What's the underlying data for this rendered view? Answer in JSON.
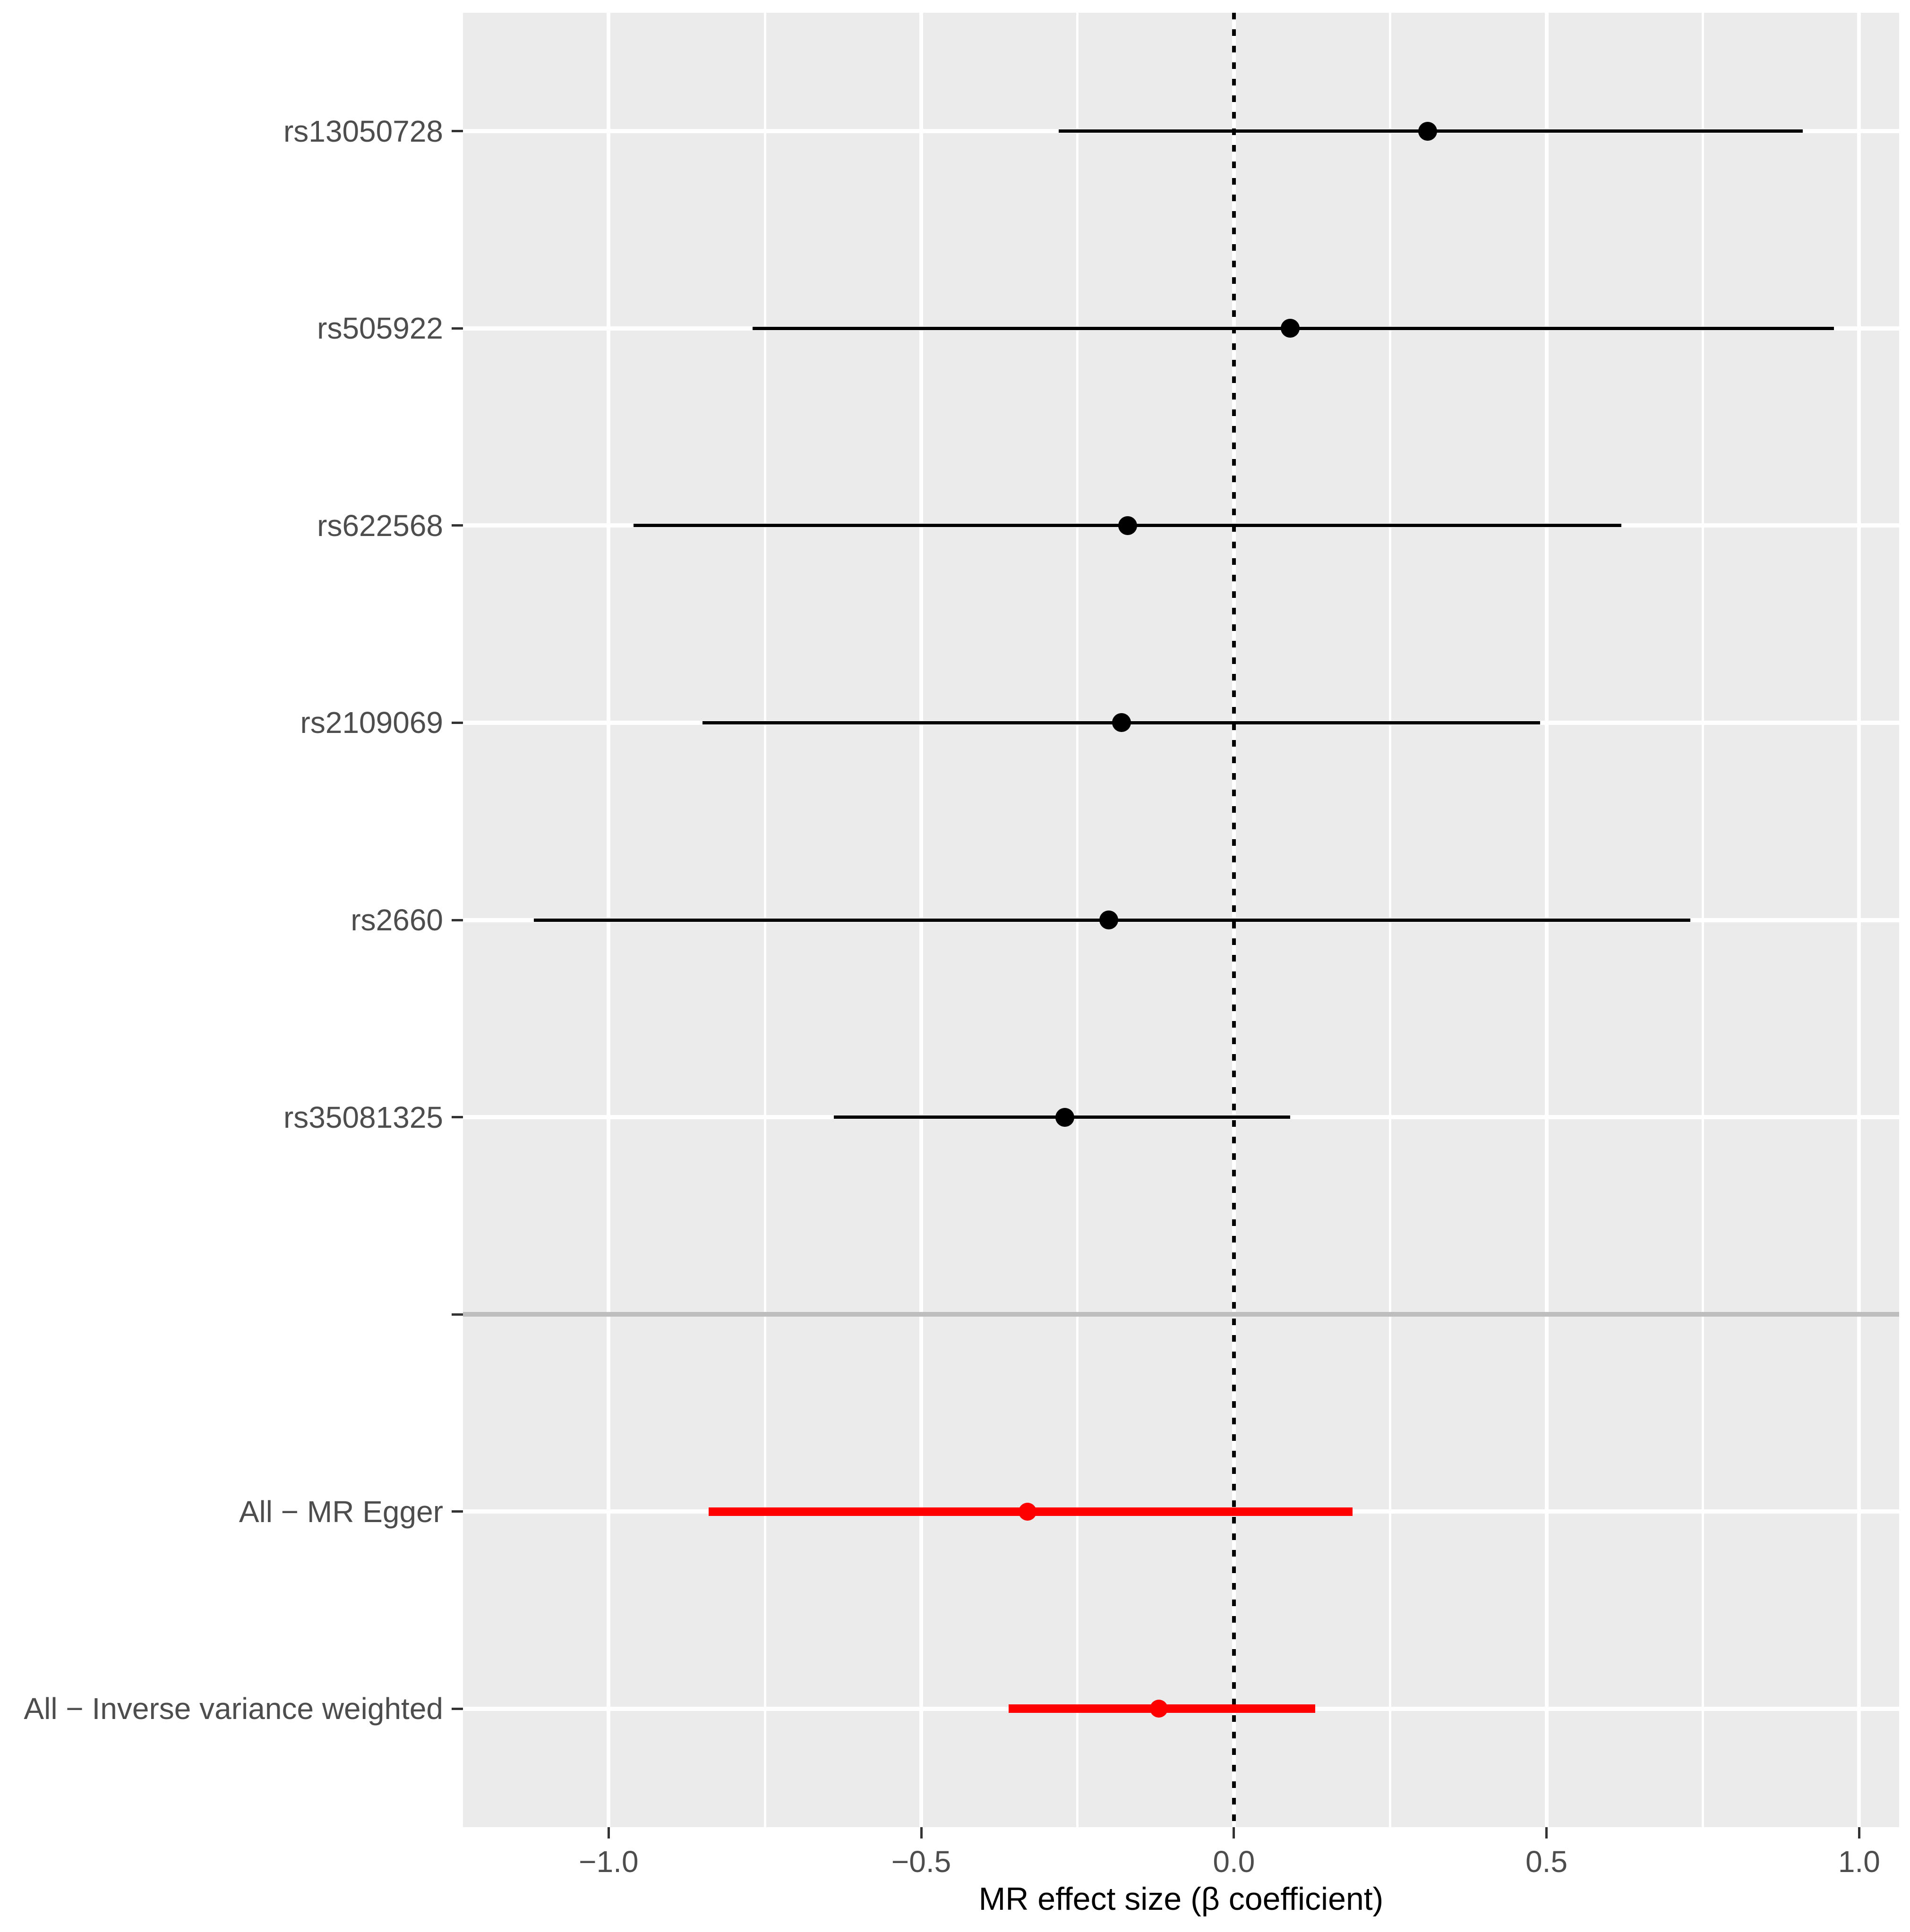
{
  "chart_data": {
    "type": "forest",
    "title": "",
    "xlabel": "MR effect size (β coefficient)",
    "ylabel": "",
    "xlim": [
      -1.233,
      1.064
    ],
    "x_ticks": [
      -1.0,
      -0.5,
      0.0,
      0.5,
      1.0
    ],
    "x_tick_labels": [
      "−1.0",
      "−0.5",
      "0.0",
      "0.5",
      "1.0"
    ],
    "x_minor_step": 0.25,
    "grid": true,
    "legend": false,
    "zero_line_x": 0,
    "rows": [
      {
        "label": "rs13050728",
        "beta": 0.31,
        "ci_low": -0.28,
        "ci_high": 0.91,
        "group": "snp"
      },
      {
        "label": "rs505922",
        "beta": 0.09,
        "ci_low": -0.77,
        "ci_high": 0.96,
        "group": "snp"
      },
      {
        "label": "rs622568",
        "beta": -0.17,
        "ci_low": -0.96,
        "ci_high": 0.62,
        "group": "snp"
      },
      {
        "label": "rs2109069",
        "beta": -0.18,
        "ci_low": -0.85,
        "ci_high": 0.49,
        "group": "snp"
      },
      {
        "label": "rs2660",
        "beta": -0.2,
        "ci_low": -1.12,
        "ci_high": 0.73,
        "group": "snp"
      },
      {
        "label": "rs35081325",
        "beta": -0.27,
        "ci_low": -0.64,
        "ci_high": 0.09,
        "group": "snp"
      },
      {
        "label": "",
        "separator": true
      },
      {
        "label": "All − MR Egger",
        "beta": -0.33,
        "ci_low": -0.84,
        "ci_high": 0.19,
        "group": "summary"
      },
      {
        "label": "All − Inverse variance weighted",
        "beta": -0.12,
        "ci_low": -0.36,
        "ci_high": 0.13,
        "group": "summary"
      }
    ],
    "colors": {
      "snp": "#000000",
      "summary": "#FF0000",
      "panel_bg": "#EBEBEB",
      "grid": "#FFFFFF",
      "separator": "#BEBEBE",
      "axis_text": "#4D4D4D",
      "axis_title": "#000000",
      "tick_mark": "#333333",
      "zero_line": "#000000"
    }
  }
}
